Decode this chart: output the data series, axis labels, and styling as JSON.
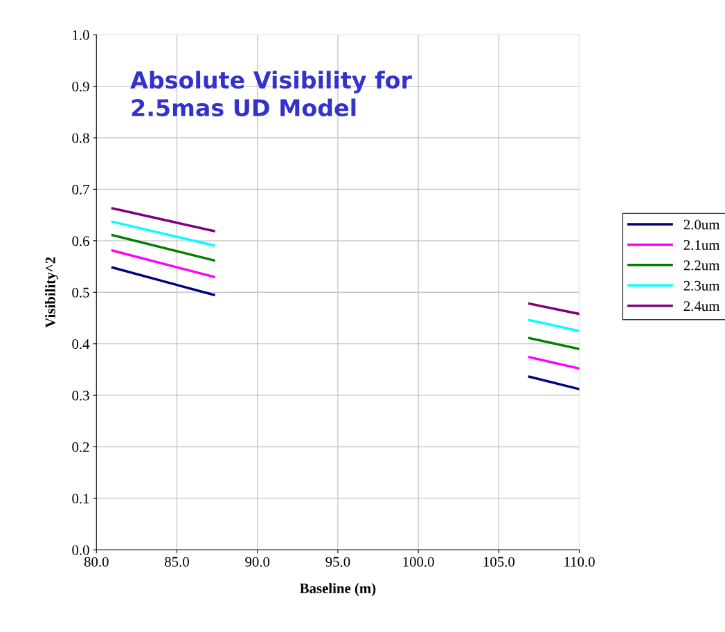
{
  "chart_data": {
    "type": "line",
    "title": "Absolute Visibility for\n2.5mas UD Model",
    "xlabel": "Baseline (m)",
    "ylabel": "Visibility^2",
    "x": [
      81.0,
      87.3,
      97.0,
      106.9,
      110.0
    ],
    "series": [
      {
        "name": "2.0um",
        "color": "#000080",
        "values": [
          0.548,
          0.495,
          null,
          0.336,
          0.312
        ]
      },
      {
        "name": "2.1um",
        "color": "#ff00ff",
        "values": [
          0.581,
          0.53,
          null,
          0.374,
          0.352
        ]
      },
      {
        "name": "2.2um",
        "color": "#008000",
        "values": [
          0.611,
          0.562,
          null,
          0.411,
          0.39
        ]
      },
      {
        "name": "2.3um",
        "color": "#00ffff",
        "values": [
          0.637,
          0.591,
          null,
          0.446,
          0.425
        ]
      },
      {
        "name": "2.4um",
        "color": "#800080",
        "values": [
          0.663,
          0.619,
          null,
          0.478,
          0.458
        ]
      }
    ],
    "xlim": [
      80,
      110
    ],
    "xticks": [
      {
        "value": 80,
        "label": "80.0"
      },
      {
        "value": 85,
        "label": "85.0"
      },
      {
        "value": 90,
        "label": "90.0"
      },
      {
        "value": 95,
        "label": "95.0"
      },
      {
        "value": 100,
        "label": "100.0"
      },
      {
        "value": 105,
        "label": "105.0"
      },
      {
        "value": 110,
        "label": "110.0"
      }
    ],
    "ylim": [
      0,
      1
    ],
    "yticks": [
      {
        "value": 0,
        "label": "0.0"
      },
      {
        "value": 0.1,
        "label": "0.1"
      },
      {
        "value": 0.2,
        "label": "0.2"
      },
      {
        "value": 0.3,
        "label": "0.3"
      },
      {
        "value": 0.4,
        "label": "0.4"
      },
      {
        "value": 0.5,
        "label": "0.5"
      },
      {
        "value": 0.6,
        "label": "0.6"
      },
      {
        "value": 0.7,
        "label": "0.7"
      },
      {
        "value": 0.8,
        "label": "0.8"
      },
      {
        "value": 0.9,
        "label": "0.9"
      },
      {
        "value": 1.0,
        "label": "1.0"
      }
    ],
    "grid": true,
    "legend": "right",
    "marker": "none",
    "line_style": "solid"
  }
}
